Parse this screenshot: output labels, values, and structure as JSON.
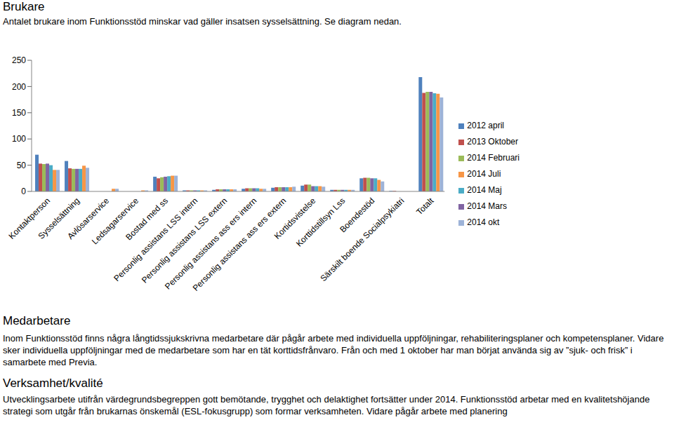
{
  "brukare": {
    "heading": "Brukare",
    "text": "Antalet brukare inom Funktionsstöd minskar vad gäller insatsen sysselsättning. Se diagram nedan."
  },
  "chart_data": {
    "type": "bar",
    "categories": [
      "Kontaktperson",
      "Sysselsättning",
      "Avlösarservice",
      "Ledsagarservice",
      "Bostad med ss",
      "Personlig assistans LSS intern",
      "Personlig assistans LSS extern",
      "Personlig assistans ass ers intern",
      "Personlig assistans ass ers extern",
      "Kortidsvistelse",
      "Korttidstillsyn Lss",
      "Boendestöd",
      "Särskilt boende Socialpsykiatri",
      "Totalt"
    ],
    "series": [
      {
        "name": "2012 april",
        "color": "#4f81bd",
        "values": [
          70,
          58,
          0,
          0,
          28,
          2,
          3,
          5,
          7,
          11,
          3,
          25,
          1,
          218
        ]
      },
      {
        "name": "2013 Oktober",
        "color": "#c0504d",
        "values": [
          53,
          44,
          0,
          0,
          25,
          2,
          4,
          6,
          8,
          13,
          3,
          26,
          1,
          188
        ]
      },
      {
        "name": "2014 Februari",
        "color": "#9bbb59",
        "values": [
          52,
          43,
          0,
          0,
          27,
          2,
          4,
          6,
          8,
          13,
          3,
          26,
          0,
          190
        ]
      },
      {
        "name": "2014 Mars",
        "color": "#8064a2",
        "values": [
          53,
          43,
          0,
          0,
          28,
          2,
          4,
          6,
          8,
          10,
          3,
          25,
          0,
          190
        ]
      },
      {
        "name": "2014 Maj",
        "color": "#4bacc6",
        "values": [
          50,
          43,
          0,
          0,
          29,
          2,
          4,
          6,
          8,
          10,
          3,
          25,
          0,
          187
        ]
      },
      {
        "name": "2014 Juli",
        "color": "#f79646",
        "values": [
          41,
          49,
          5,
          2,
          30,
          2,
          4,
          5,
          8,
          10,
          3,
          22,
          0,
          186
        ]
      },
      {
        "name": "2014 okt",
        "color": "#9db3d8",
        "values": [
          41,
          45,
          5,
          2,
          30,
          2,
          4,
          5,
          9,
          9,
          3,
          19,
          0,
          179
        ]
      }
    ],
    "ylim": [
      0,
      250
    ],
    "yticks": [
      0,
      50,
      100,
      150,
      200,
      250
    ],
    "grid": false,
    "legend": "right"
  },
  "medarbetare": {
    "heading": "Medarbetare",
    "text": "Inom Funktionsstöd finns några långtidssjukskrivna medarbetare där pågår arbete med individuella uppföljningar, rehabiliteringsplaner och kompetensplaner. Vidare sker individuella uppföljningar med de medarbetare som har en tät korttidsfrånvaro. Från och med 1 oktober har man börjat använda sig av ”sjuk- och frisk” i samarbete med Previa."
  },
  "verksamhet": {
    "heading": "Verksamhet/kvalité",
    "text": "Utvecklingsarbete utifrån värdegrundsbegreppen gott bemötande, trygghet och delaktighet fortsätter under 2014. Funktionsstöd arbetar med en kvalitetshöjande strategi som utgår från brukarnas önskemål (ESL-fokusgrupp) som formar verksamheten. Vidare pågår arbete med planering"
  }
}
